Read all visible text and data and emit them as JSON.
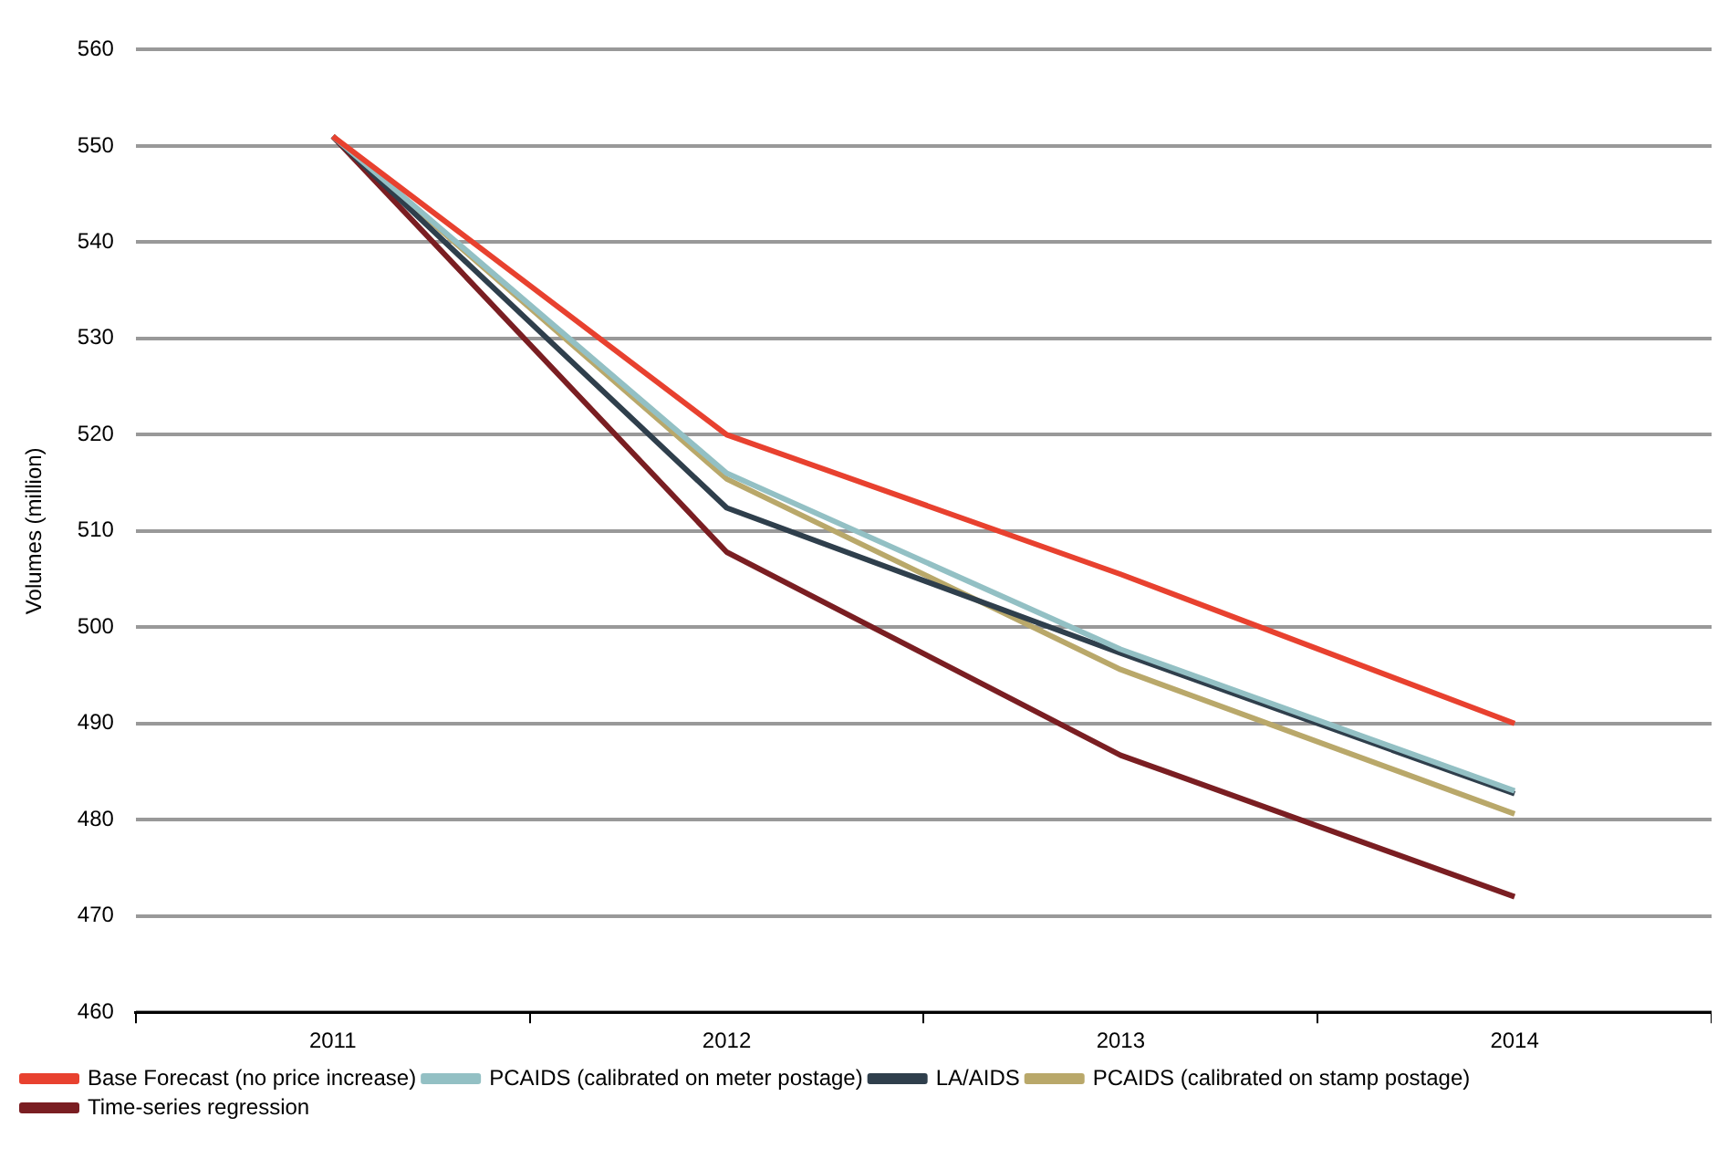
{
  "chart_data": {
    "type": "line",
    "ylabel": "Volumes (million)",
    "categories": [
      "2011",
      "2012",
      "2013",
      "2014"
    ],
    "series": [
      {
        "name": "Base Forecast (no price increase)",
        "color": "#e8412f",
        "values": [
          551,
          520,
          505.5,
          490
        ]
      },
      {
        "name": "PCAIDS (calibrated on meter postage)",
        "color": "#93c0c4",
        "values": [
          551,
          516,
          497.7,
          483
        ]
      },
      {
        "name": "LA/AIDS",
        "color": "#2f3f4c",
        "values": [
          551,
          512.4,
          497.3,
          482.7
        ]
      },
      {
        "name": "PCAIDS (calibrated on stamp postage)",
        "color": "#b9a86a",
        "values": [
          551,
          515.4,
          495.6,
          480.6
        ]
      },
      {
        "name": "Time-series regression",
        "color": "#7a1e22",
        "values": [
          551,
          507.8,
          486.7,
          472
        ]
      }
    ],
    "ylim": [
      460,
      560
    ],
    "yticks": [
      460,
      470,
      480,
      490,
      500,
      510,
      520,
      530,
      540,
      550,
      560
    ],
    "grid": "y",
    "legend": "bottom",
    "marker": "none",
    "line_style": "solid"
  }
}
